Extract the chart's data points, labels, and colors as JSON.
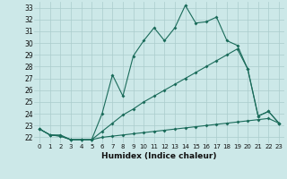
{
  "xlabel": "Humidex (Indice chaleur)",
  "background_color": "#cce8e8",
  "grid_color": "#aacccc",
  "line_color": "#1a6b5a",
  "xlim": [
    -0.5,
    23.5
  ],
  "ylim": [
    21.5,
    33.5
  ],
  "xticks": [
    0,
    1,
    2,
    3,
    4,
    5,
    6,
    7,
    8,
    9,
    10,
    11,
    12,
    13,
    14,
    15,
    16,
    17,
    18,
    19,
    20,
    21,
    22,
    23
  ],
  "yticks": [
    22,
    23,
    24,
    25,
    26,
    27,
    28,
    29,
    30,
    31,
    32,
    33
  ],
  "line1": [
    22.7,
    22.2,
    22.2,
    21.8,
    21.8,
    21.8,
    24.0,
    27.3,
    25.5,
    28.9,
    30.2,
    31.3,
    30.2,
    31.3,
    33.2,
    31.7,
    31.8,
    32.2,
    30.2,
    29.8,
    27.8,
    23.8,
    24.2,
    23.2
  ],
  "line2": [
    22.7,
    22.2,
    22.1,
    21.8,
    21.8,
    21.8,
    22.0,
    22.1,
    22.2,
    22.3,
    22.4,
    22.5,
    22.6,
    22.7,
    22.8,
    22.9,
    23.0,
    23.1,
    23.2,
    23.3,
    23.4,
    23.5,
    23.6,
    23.2
  ],
  "line3": [
    22.7,
    22.2,
    22.1,
    21.8,
    21.8,
    21.8,
    22.5,
    23.2,
    23.9,
    24.4,
    25.0,
    25.5,
    26.0,
    26.5,
    27.0,
    27.5,
    28.0,
    28.5,
    29.0,
    29.5,
    27.8,
    23.8,
    24.2,
    23.2
  ]
}
